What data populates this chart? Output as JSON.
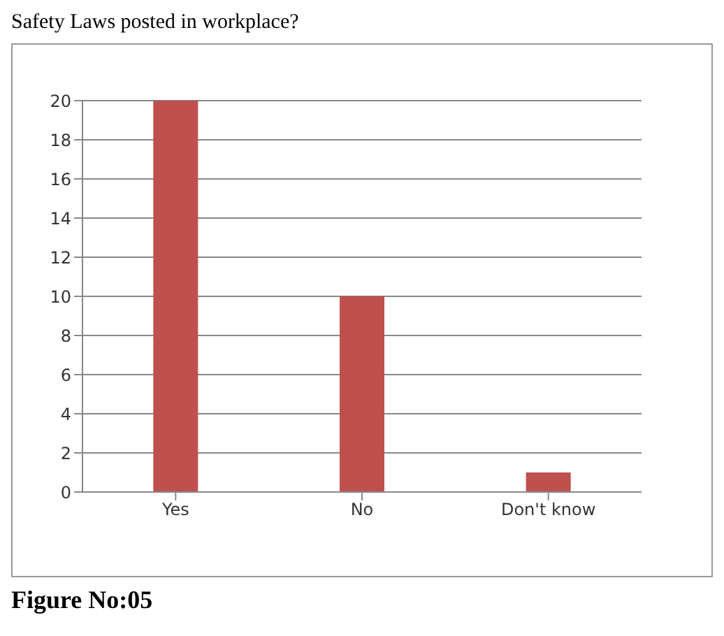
{
  "chart_data": {
    "type": "bar",
    "title": "Safety Laws posted in workplace?",
    "categories": [
      "Yes",
      "No",
      "Don't know"
    ],
    "values": [
      20,
      10,
      1
    ],
    "color": "#c0504d",
    "ylim": [
      0,
      20
    ],
    "yticks": [
      0,
      2,
      4,
      6,
      8,
      10,
      12,
      14,
      16,
      18,
      20
    ],
    "grid": "y",
    "annotations": [
      "Figure No:05"
    ]
  }
}
